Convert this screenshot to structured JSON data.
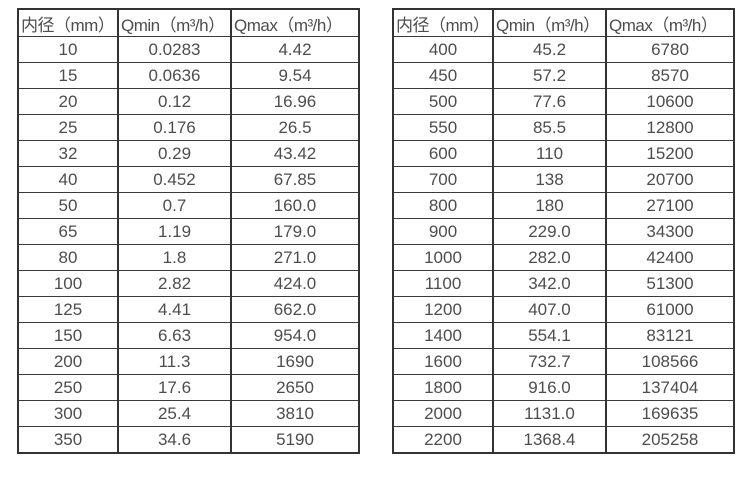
{
  "chart_data": [
    {
      "type": "table",
      "name": "small-diameter-flow-table",
      "columns": [
        "内径（mm）",
        "Qmin（m³/h）",
        "Qmax（m³/h）"
      ],
      "rows": [
        [
          "10",
          "0.0283",
          "4.42"
        ],
        [
          "15",
          "0.0636",
          "9.54"
        ],
        [
          "20",
          "0.12",
          "16.96"
        ],
        [
          "25",
          "0.176",
          "26.5"
        ],
        [
          "32",
          "0.29",
          "43.42"
        ],
        [
          "40",
          "0.452",
          "67.85"
        ],
        [
          "50",
          "0.7",
          "160.0"
        ],
        [
          "65",
          "1.19",
          "179.0"
        ],
        [
          "80",
          "1.8",
          "271.0"
        ],
        [
          "100",
          "2.82",
          "424.0"
        ],
        [
          "125",
          "4.41",
          "662.0"
        ],
        [
          "150",
          "6.63",
          "954.0"
        ],
        [
          "200",
          "11.3",
          "1690"
        ],
        [
          "250",
          "17.6",
          "2650"
        ],
        [
          "300",
          "25.4",
          "3810"
        ],
        [
          "350",
          "34.6",
          "5190"
        ]
      ]
    },
    {
      "type": "table",
      "name": "large-diameter-flow-table",
      "columns": [
        "内径（mm）",
        "Qmin（m³/h）",
        "Qmax（m³/h）"
      ],
      "rows": [
        [
          "400",
          "45.2",
          "6780"
        ],
        [
          "450",
          "57.2",
          "8570"
        ],
        [
          "500",
          "77.6",
          "10600"
        ],
        [
          "550",
          "85.5",
          "12800"
        ],
        [
          "600",
          "110",
          "15200"
        ],
        [
          "700",
          "138",
          "20700"
        ],
        [
          "800",
          "180",
          "27100"
        ],
        [
          "900",
          "229.0",
          "34300"
        ],
        [
          "1000",
          "282.0",
          "42400"
        ],
        [
          "1100",
          "342.0",
          "51300"
        ],
        [
          "1200",
          "407.0",
          "61000"
        ],
        [
          "1400",
          "554.1",
          "83121"
        ],
        [
          "1600",
          "732.7",
          "108566"
        ],
        [
          "1800",
          "916.0",
          "137404"
        ],
        [
          "2000",
          "1131.0",
          "169635"
        ],
        [
          "2200",
          "1368.4",
          "205258"
        ]
      ]
    }
  ],
  "colors": {
    "background": "#ffffff",
    "border": "#333333",
    "text": "#4d4d4d"
  }
}
